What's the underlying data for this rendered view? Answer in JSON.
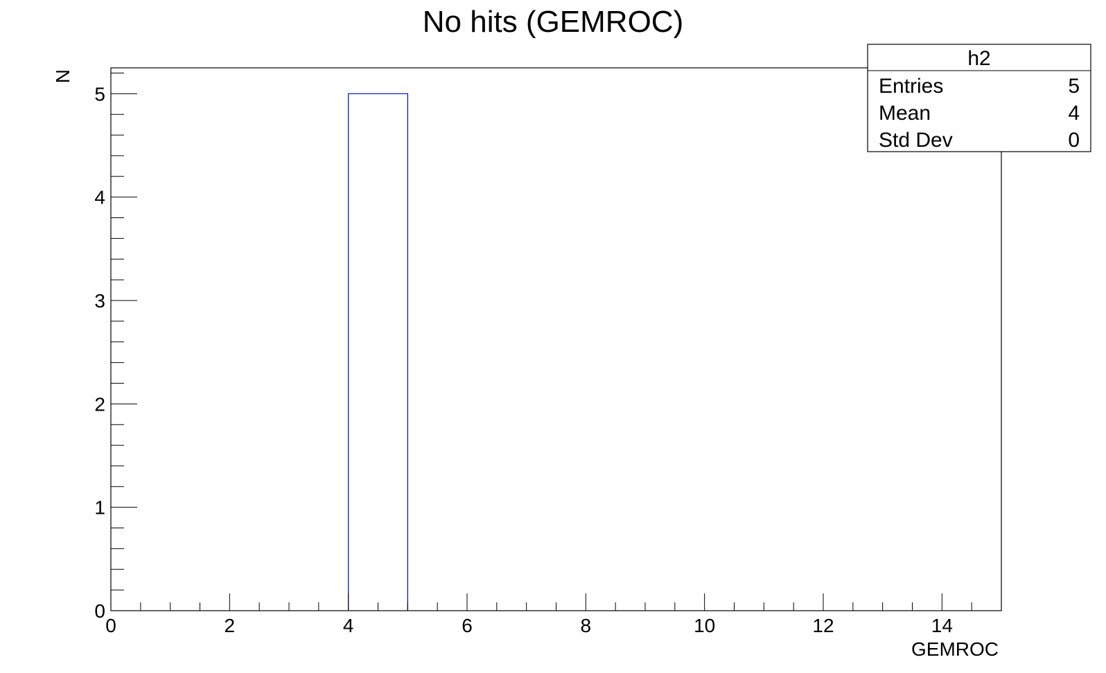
{
  "chart_data": {
    "type": "bar",
    "title": "No hits (GEMROC)",
    "xlabel": "GEMROC",
    "ylabel": "N",
    "xlim": [
      0,
      15
    ],
    "ylim": [
      0,
      5.25
    ],
    "x_ticks": [
      "0",
      "2",
      "4",
      "6",
      "8",
      "10",
      "12",
      "14"
    ],
    "y_ticks": [
      "0",
      "1",
      "2",
      "3",
      "4",
      "5"
    ],
    "bins": [
      {
        "low": 4,
        "high": 5,
        "value": 5
      }
    ],
    "bar_color": "#0000cc",
    "grid": false,
    "stats_box": {
      "name": "h2",
      "rows": [
        {
          "label": "Entries",
          "value": "5"
        },
        {
          "label": "Mean",
          "value": "4"
        },
        {
          "label": "Std Dev",
          "value": "0"
        }
      ]
    }
  }
}
